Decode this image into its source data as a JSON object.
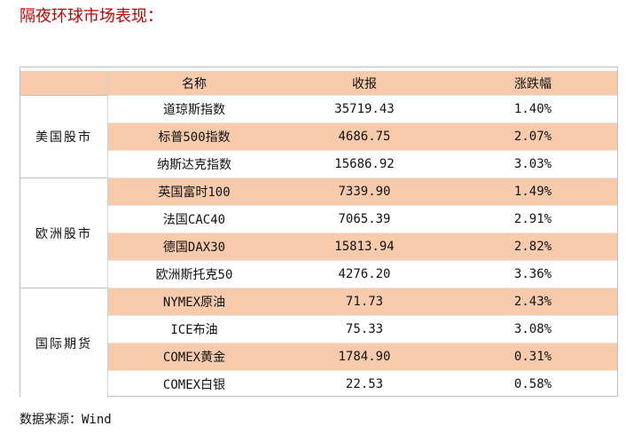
{
  "title": "隔夜环球市场表现：",
  "table": {
    "header": [
      "名称",
      "收报",
      "涨跌幅"
    ],
    "groups": [
      {
        "name": "美国股市",
        "rows": [
          [
            "道琼斯指数",
            "35719.43",
            "1.40%"
          ],
          [
            "标普500指数",
            "4686.75",
            "2.07%"
          ],
          [
            "纳斯达克指数",
            "15686.92",
            "3.03%"
          ]
        ]
      },
      {
        "name": "欧洲股市",
        "rows": [
          [
            "英国富时100",
            "7339.90",
            "1.49%"
          ],
          [
            "法国CAC40",
            "7065.39",
            "2.91%"
          ],
          [
            "德国DAX30",
            "15813.94",
            "2.82%"
          ],
          [
            "欧洲斯托克50",
            "4276.20",
            "3.36%"
          ]
        ]
      },
      {
        "name": "国际期货",
        "rows": [
          [
            "NYMEX原油",
            "71.73",
            "2.43%"
          ],
          [
            "ICE布油",
            "75.33",
            "3.08%"
          ],
          [
            "COMEX黄金",
            "1784.90",
            "0.31%"
          ],
          [
            "COMEX白银",
            "22.53",
            "0.58%"
          ]
        ]
      }
    ]
  },
  "source": "数据来源：Wind"
}
